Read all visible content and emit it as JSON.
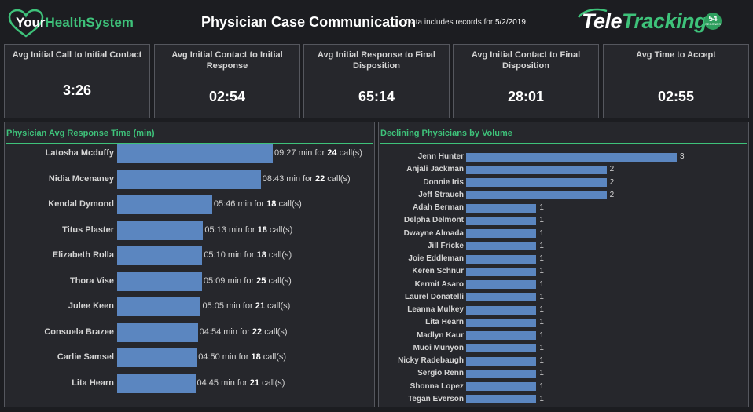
{
  "header": {
    "logo_left": {
      "part1": "Your",
      "part2": "HealthSystem"
    },
    "title": "Physician Case Communication",
    "subtitle_prefix": "Data includes records for ",
    "subtitle_date": "5/2/2019",
    "logo_right": {
      "part1": "Tele",
      "part2": "Tracking"
    },
    "badge": {
      "number": "54",
      "caption": "SECONDS"
    }
  },
  "kpis": [
    {
      "label": "Avg Initial Call to Initial Contact",
      "value": "3:26"
    },
    {
      "label": "Avg Initial Contact to Initial Response",
      "value": "02:54"
    },
    {
      "label": "Avg Initial Response to Final Disposition",
      "value": "65:14"
    },
    {
      "label": "Avg Initial Contact to Final Disposition",
      "value": "28:01"
    },
    {
      "label": "Avg Time to Accept",
      "value": "02:55"
    }
  ],
  "chart_data": [
    {
      "type": "bar",
      "orientation": "horizontal",
      "title": "Physician Avg Response Time (min)",
      "categories": [
        "Latosha Mcduffy",
        "Nidia Mcenaney",
        "Kendal Dymond",
        "Titus Plaster",
        "Elizabeth Rolla",
        "Thora Vise",
        "Julee Keen",
        "Consuela Brazee",
        "Carlie Samsel",
        "Lita Hearn"
      ],
      "values": [
        9.45,
        8.72,
        5.77,
        5.22,
        5.17,
        5.15,
        5.08,
        4.9,
        4.83,
        4.75
      ],
      "time_labels": [
        "09:27",
        "08:43",
        "05:46",
        "05:13",
        "05:10",
        "05:09",
        "05:05",
        "04:54",
        "04:50",
        "04:45"
      ],
      "calls": [
        "24",
        "22",
        "18",
        "18",
        "18",
        "25",
        "21",
        "22",
        "18",
        "21"
      ],
      "label_mid": " min for ",
      "label_end": " call(s)",
      "xlim": [
        0,
        10.5
      ]
    },
    {
      "type": "bar",
      "orientation": "horizontal",
      "title": "Declining Physicians by Volume",
      "categories": [
        "Jenn Hunter",
        "Anjali Jackman",
        "Donnie Iris",
        "Jeff Strauch",
        "Adah Berman",
        "Delpha Delmont",
        "Dwayne Almada",
        "Jill Fricke",
        "Joie Eddleman",
        "Keren Schnur",
        "Kermit Asaro",
        "Laurel Donatelli",
        "Leanna Mulkey",
        "Lita Hearn",
        "Madlyn Kaur",
        "Muoi Munyon",
        "Nicky Radebaugh",
        "Sergio Renn",
        "Shonna Lopez",
        "Tegan Everson"
      ],
      "values": [
        3,
        2,
        2,
        2,
        1,
        1,
        1,
        1,
        1,
        1,
        1,
        1,
        1,
        1,
        1,
        1,
        1,
        1,
        1,
        1
      ],
      "xlim": [
        0,
        3
      ]
    }
  ]
}
